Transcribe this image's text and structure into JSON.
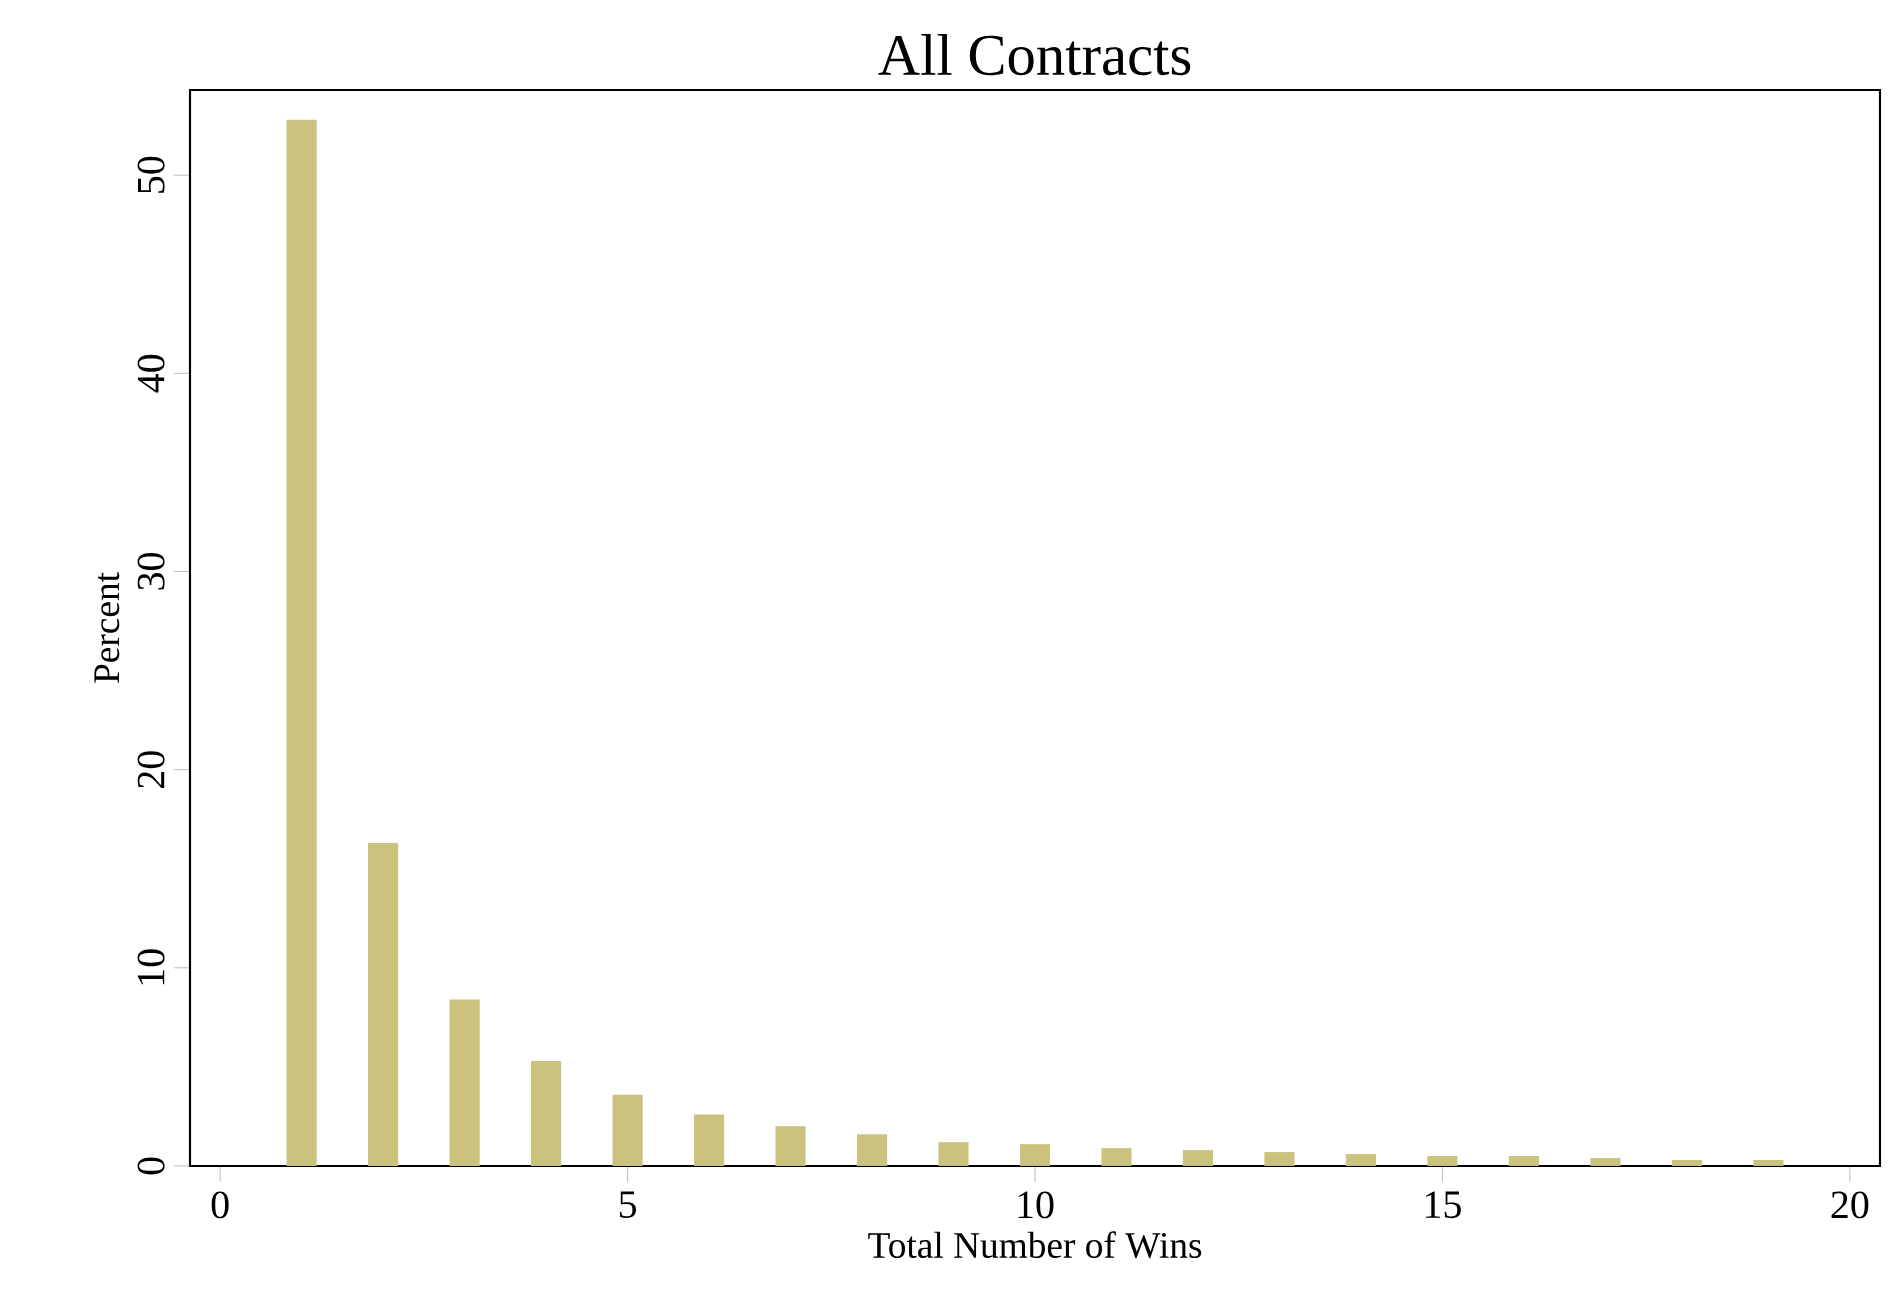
{
  "chart_data": {
    "type": "bar",
    "title": "All Contracts",
    "xlabel": "Total Number of Wins",
    "ylabel": "Percent",
    "x": [
      1,
      2,
      3,
      4,
      5,
      6,
      7,
      8,
      9,
      10,
      11,
      12,
      13,
      14,
      15,
      16,
      17,
      18,
      19
    ],
    "values": [
      52.8,
      16.3,
      8.4,
      5.3,
      3.6,
      2.6,
      2.0,
      1.6,
      1.2,
      1.1,
      0.9,
      0.8,
      0.7,
      0.6,
      0.5,
      0.5,
      0.4,
      0.3,
      0.3
    ],
    "color": "#cbc27e",
    "xlim": [
      -0.37,
      20.37
    ],
    "ylim": [
      0,
      54.3
    ],
    "xticks": [
      0,
      5,
      10,
      15,
      20
    ],
    "yticks": [
      0,
      10,
      20,
      30,
      40,
      50
    ]
  }
}
